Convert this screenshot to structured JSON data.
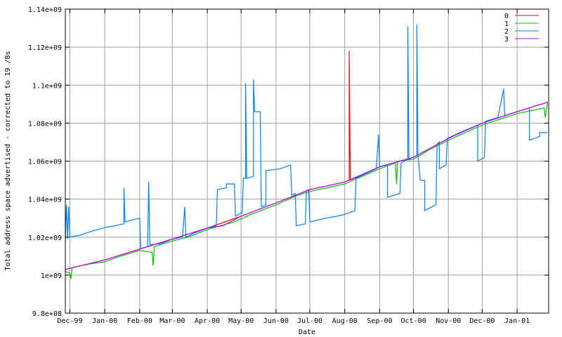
{
  "chart_data": {
    "type": "line",
    "title": "",
    "xlabel": "Date",
    "ylabel": "Total address space advertised - corrected to 19 /8s",
    "xlim": [
      "1999-11-27",
      "2001-01-29"
    ],
    "ylim": [
      980000000.0,
      1140000000.0
    ],
    "grid": true,
    "legend_position": "top-right",
    "x_ticks": [
      {
        "date": "1999-12-01",
        "label": "Dec-99"
      },
      {
        "date": "2000-01-01",
        "label": "Jan-00"
      },
      {
        "date": "2000-02-01",
        "label": "Feb-00"
      },
      {
        "date": "2000-03-01",
        "label": "Mar-00"
      },
      {
        "date": "2000-04-01",
        "label": "Apr-00"
      },
      {
        "date": "2000-05-01",
        "label": "May-00"
      },
      {
        "date": "2000-06-01",
        "label": "Jun-00"
      },
      {
        "date": "2000-07-01",
        "label": "Jul-00"
      },
      {
        "date": "2000-08-01",
        "label": "Aug-00"
      },
      {
        "date": "2000-09-01",
        "label": "Sep-00"
      },
      {
        "date": "2000-10-01",
        "label": "Oct-00"
      },
      {
        "date": "2000-11-01",
        "label": "Nov-00"
      },
      {
        "date": "2000-12-01",
        "label": "Dec-00"
      },
      {
        "date": "2001-01-01",
        "label": "Jan-01"
      }
    ],
    "y_ticks": [
      {
        "value": 980000000.0,
        "label": "9.8e+08"
      },
      {
        "value": 1000000000.0,
        "label": "1e+09"
      },
      {
        "value": 1020000000.0,
        "label": "1.02e+09"
      },
      {
        "value": 1040000000.0,
        "label": "1.04e+09"
      },
      {
        "value": 1060000000.0,
        "label": "1.06e+09"
      },
      {
        "value": 1080000000.0,
        "label": "1.08e+09"
      },
      {
        "value": 1100000000.0,
        "label": "1.1e+09"
      },
      {
        "value": 1120000000.0,
        "label": "1.12e+09"
      },
      {
        "value": 1140000000.0,
        "label": "1.14e+09"
      }
    ],
    "series": [
      {
        "name": "0",
        "color": "#ff0000",
        "points": [
          [
            "1999-11-27",
            1003000000.0
          ],
          [
            "2000-01-01",
            1008000000.0
          ],
          [
            "2000-02-01",
            1013700000.0
          ],
          [
            "2000-03-01",
            1019000000.0
          ],
          [
            "2000-04-01",
            1024800000.0
          ],
          [
            "2000-05-01",
            1031000000.0
          ],
          [
            "2000-06-01",
            1038000000.0
          ],
          [
            "2000-07-01",
            1045000000.0
          ],
          [
            "2000-08-01",
            1049000000.0
          ],
          [
            "2000-08-05",
            1050000000.0
          ],
          [
            "2000-08-05",
            1118000000.0
          ],
          [
            "2000-08-06",
            1050000000.0
          ],
          [
            "2000-09-01",
            1057000000.0
          ],
          [
            "2000-10-01",
            1062000000.0
          ],
          [
            "2000-11-01",
            1072000000.0
          ],
          [
            "2000-12-01",
            1080000000.0
          ],
          [
            "2001-01-01",
            1086000000.0
          ],
          [
            "2001-01-28",
            1091000000.0
          ]
        ]
      },
      {
        "name": "1",
        "color": "#00c000",
        "points": [
          [
            "1999-11-27",
            1002000000.0
          ],
          [
            "1999-12-01",
            1001000000.0
          ],
          [
            "1999-12-02",
            998000000.0
          ],
          [
            "1999-12-03",
            1004000000.0
          ],
          [
            "1999-12-20",
            1006000000.0
          ],
          [
            "2000-01-01",
            1007000000.0
          ],
          [
            "2000-01-15",
            1010000000.0
          ],
          [
            "2000-02-01",
            1013000000.0
          ],
          [
            "2000-02-12",
            1012000000.0
          ],
          [
            "2000-02-13",
            1005000000.0
          ],
          [
            "2000-02-14",
            1015000000.0
          ],
          [
            "2000-03-01",
            1018000000.0
          ],
          [
            "2000-03-15",
            1020000000.0
          ],
          [
            "2000-04-01",
            1024000000.0
          ],
          [
            "2000-04-25",
            1028000000.0
          ],
          [
            "2000-05-10",
            1032000000.0
          ],
          [
            "2000-06-01",
            1037000000.0
          ],
          [
            "2000-06-20",
            1042000000.0
          ],
          [
            "2000-07-01",
            1044000000.0
          ],
          [
            "2000-08-01",
            1048000000.0
          ],
          [
            "2000-09-01",
            1056000000.0
          ],
          [
            "2000-09-15",
            1059000000.0
          ],
          [
            "2000-09-16",
            1048000000.0
          ],
          [
            "2000-09-17",
            1060000000.0
          ],
          [
            "2000-10-01",
            1061000000.0
          ],
          [
            "2000-10-15",
            1066000000.0
          ],
          [
            "2000-11-01",
            1071000000.0
          ],
          [
            "2000-12-01",
            1079000000.0
          ],
          [
            "2001-01-01",
            1085000000.0
          ],
          [
            "2001-01-25",
            1088000000.0
          ],
          [
            "2001-01-26",
            1083000000.0
          ],
          [
            "2001-01-28",
            1091000000.0
          ]
        ]
      },
      {
        "name": "2",
        "color": "#0080ff",
        "points": [
          [
            "1999-11-27",
            1019000000.0
          ],
          [
            "1999-11-28",
            1037000000.0
          ],
          [
            "1999-11-29",
            1019000000.0
          ],
          [
            "1999-11-30",
            1036000000.0
          ],
          [
            "1999-12-01",
            1020000000.0
          ],
          [
            "1999-12-10",
            1021000000.0
          ],
          [
            "1999-12-20",
            1023000000.0
          ],
          [
            "2000-01-01",
            1025000000.0
          ],
          [
            "2000-01-10",
            1026000000.0
          ],
          [
            "2000-01-18",
            1027000000.0
          ],
          [
            "2000-01-18",
            1046000000.0
          ],
          [
            "2000-01-19",
            1028000000.0
          ],
          [
            "2000-01-25",
            1029000000.0
          ],
          [
            "2000-02-01",
            1030000000.0
          ],
          [
            "2000-02-02",
            1014000000.0
          ],
          [
            "2000-02-08",
            1015000000.0
          ],
          [
            "2000-02-09",
            1049000000.0
          ],
          [
            "2000-02-10",
            1016000000.0
          ],
          [
            "2000-02-20",
            1016500000.0
          ],
          [
            "2000-03-01",
            1019000000.0
          ],
          [
            "2000-03-10",
            1020000000.0
          ],
          [
            "2000-03-12",
            1036000000.0
          ],
          [
            "2000-03-13",
            1020000000.0
          ],
          [
            "2000-03-20",
            1022000000.0
          ],
          [
            "2000-04-01",
            1024800000.0
          ],
          [
            "2000-04-09",
            1026000000.0
          ],
          [
            "2000-04-10",
            1045000000.0
          ],
          [
            "2000-04-18",
            1046000000.0
          ],
          [
            "2000-04-18",
            1048000000.0
          ],
          [
            "2000-04-25",
            1048000000.0
          ],
          [
            "2000-04-26",
            1031000000.0
          ],
          [
            "2000-05-02",
            1033000000.0
          ],
          [
            "2000-05-03",
            1051000000.0
          ],
          [
            "2000-05-05",
            1051000000.0
          ],
          [
            "2000-05-05",
            1101000000.0
          ],
          [
            "2000-05-06",
            1051000000.0
          ],
          [
            "2000-05-12",
            1052000000.0
          ],
          [
            "2000-05-12",
            1103000000.0
          ],
          [
            "2000-05-13",
            1086000000.0
          ],
          [
            "2000-05-18",
            1086000000.0
          ],
          [
            "2000-05-19",
            1036000000.0
          ],
          [
            "2000-05-23",
            1037000000.0
          ],
          [
            "2000-05-23",
            1055000000.0
          ],
          [
            "2000-06-05",
            1056000000.0
          ],
          [
            "2000-06-14",
            1058000000.0
          ],
          [
            "2000-06-15",
            1042000000.0
          ],
          [
            "2000-06-18",
            1043000000.0
          ],
          [
            "2000-06-19",
            1026000000.0
          ],
          [
            "2000-06-27",
            1027000000.0
          ],
          [
            "2000-06-28",
            1044500000.0
          ],
          [
            "2000-06-30",
            1045000000.0
          ],
          [
            "2000-07-01",
            1028000000.0
          ],
          [
            "2000-07-15",
            1030000000.0
          ],
          [
            "2000-07-25",
            1031000000.0
          ],
          [
            "2000-08-01",
            1032000000.0
          ],
          [
            "2000-08-10",
            1034000000.0
          ],
          [
            "2000-08-11",
            1051000000.0
          ],
          [
            "2000-08-29",
            1056000000.0
          ],
          [
            "2000-08-31",
            1074000000.0
          ],
          [
            "2000-09-01",
            1057000000.0
          ],
          [
            "2000-09-08",
            1058000000.0
          ],
          [
            "2000-09-08",
            1041000000.0
          ],
          [
            "2000-09-19",
            1043000000.0
          ],
          [
            "2000-09-20",
            1059000000.0
          ],
          [
            "2000-09-26",
            1061000000.0
          ],
          [
            "2000-09-26",
            1131000000.0
          ],
          [
            "2000-09-27",
            1061000000.0
          ],
          [
            "2000-10-04",
            1063000000.0
          ],
          [
            "2000-10-04",
            1132000000.0
          ],
          [
            "2000-10-05",
            1063000000.0
          ],
          [
            "2000-10-07",
            1050000000.0
          ],
          [
            "2000-10-11",
            1050000000.0
          ],
          [
            "2000-10-11",
            1034000000.0
          ],
          [
            "2000-10-21",
            1037000000.0
          ],
          [
            "2000-10-22",
            1069000000.0
          ],
          [
            "2000-10-24",
            1070000000.0
          ],
          [
            "2000-10-24",
            1056000000.0
          ],
          [
            "2000-10-30",
            1058000000.0
          ],
          [
            "2000-10-31",
            1072000000.0
          ],
          [
            "2000-11-15",
            1076000000.0
          ],
          [
            "2000-11-27",
            1079000000.0
          ],
          [
            "2000-11-27",
            1060000000.0
          ],
          [
            "2000-12-03",
            1062000000.0
          ],
          [
            "2000-12-04",
            1081000000.0
          ],
          [
            "2000-12-15",
            1083000000.0
          ],
          [
            "2000-12-20",
            1098000000.0
          ],
          [
            "2000-12-21",
            1084000000.0
          ],
          [
            "2001-01-01",
            1086000000.0
          ],
          [
            "2001-01-12",
            1088000000.0
          ],
          [
            "2001-01-12",
            1071000000.0
          ],
          [
            "2001-01-21",
            1073000000.0
          ],
          [
            "2001-01-21",
            1075000000.0
          ],
          [
            "2001-01-28",
            1075000000.0
          ]
        ]
      },
      {
        "name": "3",
        "color": "#c000ff",
        "points": [
          [
            "1999-11-27",
            1003000000.0
          ],
          [
            "2000-01-01",
            1008000000.0
          ],
          [
            "2000-02-01",
            1013700000.0
          ],
          [
            "2000-03-01",
            1019000000.0
          ],
          [
            "2000-04-01",
            1024800000.0
          ],
          [
            "2000-04-15",
            1026000000.0
          ],
          [
            "2000-05-01",
            1031000000.0
          ],
          [
            "2000-06-01",
            1038000000.0
          ],
          [
            "2000-07-01",
            1045000000.0
          ],
          [
            "2000-08-01",
            1049000000.0
          ],
          [
            "2000-09-01",
            1057000000.0
          ],
          [
            "2000-10-01",
            1062000000.0
          ],
          [
            "2000-11-01",
            1072000000.0
          ],
          [
            "2000-12-01",
            1080000000.0
          ],
          [
            "2001-01-01",
            1086000000.0
          ],
          [
            "2001-01-28",
            1091000000.0
          ]
        ]
      }
    ]
  }
}
